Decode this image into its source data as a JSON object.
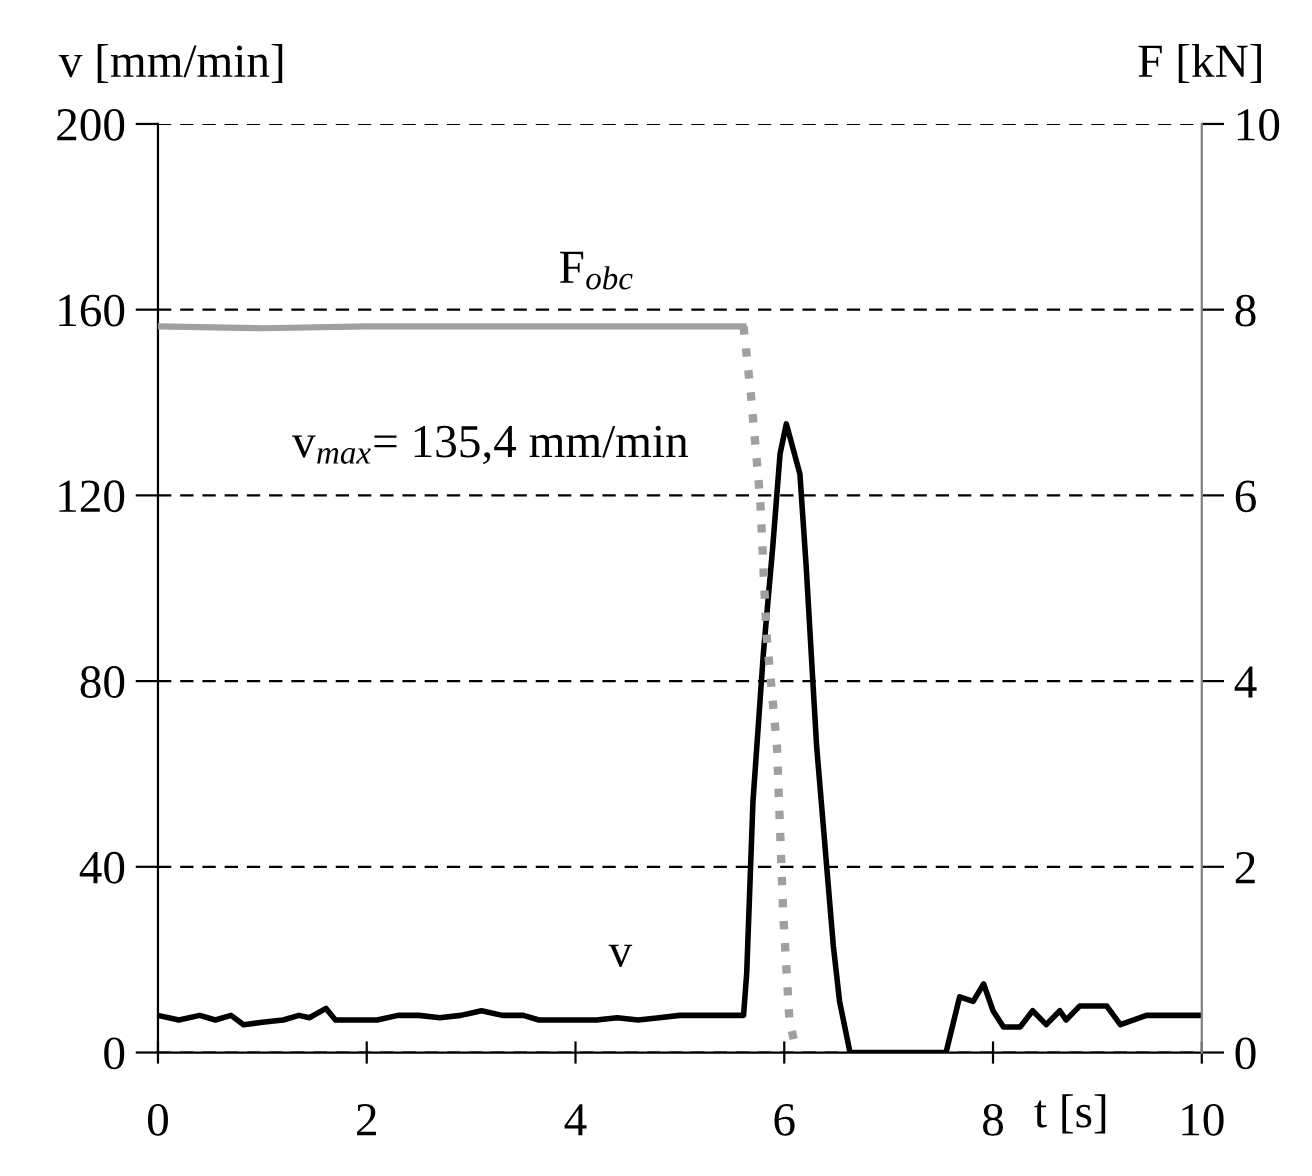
{
  "chart_data": {
    "type": "line",
    "xlabel": "t [s]",
    "ylabel": "v [mm/min]",
    "y2label": "F [kN]",
    "xlim": [
      0,
      10
    ],
    "xticks": [
      0,
      2,
      4,
      6,
      8,
      10
    ],
    "ylim": [
      0,
      200
    ],
    "yticks": [
      0,
      40,
      80,
      120,
      160,
      200
    ],
    "y2lim": [
      0,
      10
    ],
    "y2ticks": [
      0,
      2,
      4,
      6,
      8,
      10
    ],
    "grid": "y",
    "legend": false,
    "marker": "none",
    "series": [
      {
        "color": "#000000",
        "line_style": "solid",
        "x": [
          0,
          0.2,
          0.4,
          0.55,
          0.7,
          0.82,
          1.0,
          1.2,
          1.35,
          1.45,
          1.61,
          1.7,
          1.9,
          2.1,
          2.3,
          2.5,
          2.7,
          2.9,
          3.1,
          3.3,
          3.5,
          3.65,
          3.8,
          4.0,
          4.2,
          4.4,
          4.6,
          4.8,
          5.0,
          5.2,
          5.4,
          5.55,
          5.61,
          5.64,
          5.7,
          5.8,
          5.89,
          5.96,
          6.02,
          6.15,
          6.21,
          6.31,
          6.47,
          6.53,
          6.63,
          7.0,
          7.55,
          7.68,
          7.81,
          7.91,
          8.0,
          8.1,
          8.26,
          8.38,
          8.51,
          8.64,
          8.7,
          8.83,
          9.09,
          9.22,
          9.47,
          9.98
        ],
        "values": [
          8,
          7,
          8,
          7,
          8,
          6,
          6.5,
          7,
          8,
          7.5,
          9.5,
          7,
          7,
          7,
          8,
          8,
          7.5,
          8,
          9,
          8,
          8,
          7,
          7,
          7,
          7,
          7.5,
          7,
          7.5,
          8,
          8,
          8,
          8,
          8,
          17,
          54,
          86,
          109,
          129,
          135.4,
          124.6,
          104.7,
          66,
          23,
          11,
          0,
          0,
          0,
          12,
          11,
          14.8,
          9,
          5.5,
          5.5,
          9,
          6,
          9,
          7,
          10,
          10,
          6,
          8,
          8
        ]
      },
      {
        "color": "#a0a0a0",
        "line_style": "solid",
        "axis": "y2",
        "x": [
          0,
          1.0,
          2.0,
          3.0,
          4.0,
          5.0,
          5.61
        ],
        "values": [
          7.82,
          7.8,
          7.82,
          7.82,
          7.82,
          7.82,
          7.82
        ]
      },
      {
        "color": "#a0a0a0",
        "line_style": "dotted",
        "axis": "y2",
        "x": [
          5.61,
          5.68,
          5.77,
          5.83,
          5.93,
          5.99,
          6.05,
          6.12
        ],
        "values": [
          7.82,
          7.09,
          5.95,
          4.5,
          3.3,
          1.49,
          0.34,
          0
        ]
      }
    ],
    "annotations": [
      {
        "text": "F$_{obc}$",
        "x": 4.2,
        "y": 156.4
      },
      {
        "text": "v$_{max}$= 135,4 mm/min",
        "x": 6.02,
        "y": 135.4
      },
      {
        "text": "v",
        "x": 4.43,
        "y": 8
      }
    ]
  }
}
